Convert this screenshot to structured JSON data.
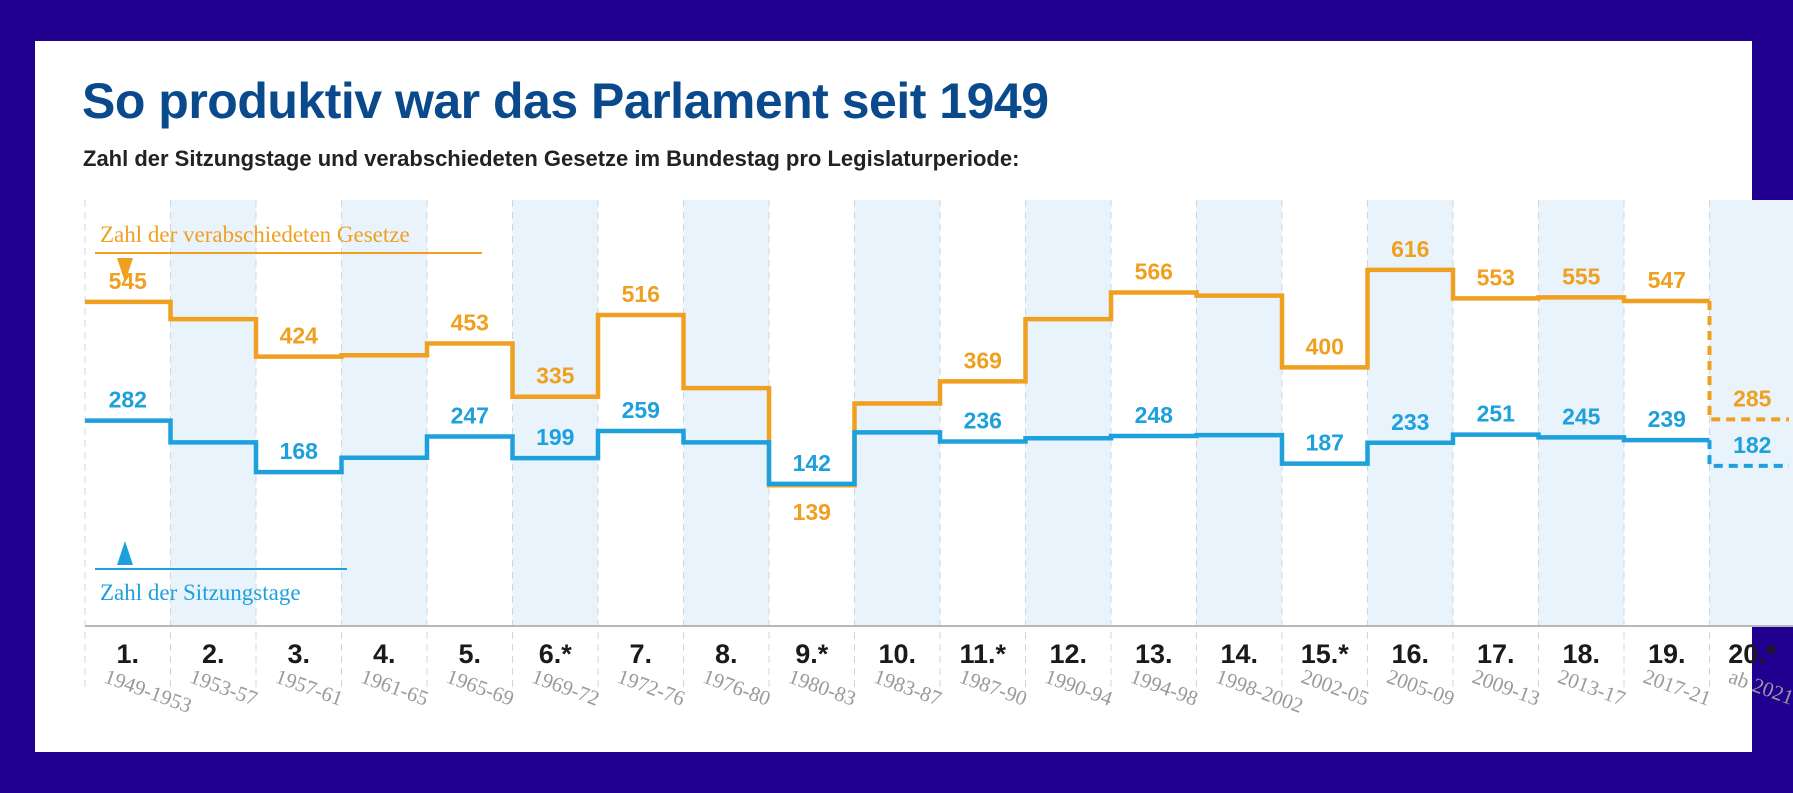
{
  "title": "So produktiv war das Parlament seit 1949",
  "subtitle": "Zahl der Sitzungstage und verabschiedeten Gesetze im Bundestag pro Legislaturperiode:",
  "colors": {
    "gesetze": "#f0a020",
    "sitzungstage": "#1ea0dc",
    "title": "#0a4a8c",
    "frame": "#22008f"
  },
  "chart_data": {
    "type": "line",
    "step": true,
    "categories": [
      "1.",
      "2.",
      "3.",
      "4.",
      "5.",
      "6.*",
      "7.",
      "8.",
      "9.*",
      "10.",
      "11.*",
      "12.",
      "13.",
      "14.",
      "15.*",
      "16.",
      "17.",
      "18.",
      "19.",
      "20.*"
    ],
    "periods": [
      "1949-1953",
      "1953-57",
      "1957-61",
      "1961-65",
      "1965-69",
      "1969-72",
      "1972-76",
      "1976-80",
      "1980-83",
      "1983-87",
      "1987-90",
      "1990-94",
      "1994-98",
      "1998-2002",
      "2002-05",
      "2005-09",
      "2009-13",
      "2013-17",
      "2017-21",
      "ab 2021"
    ],
    "series": [
      {
        "name": "Zahl der verabschiedeten Gesetze",
        "values": [
          545,
          507,
          424,
          427,
          453,
          335,
          516,
          354,
          139,
          320,
          369,
          507,
          566,
          559,
          400,
          616,
          553,
          555,
          547,
          285
        ],
        "labels": [
          "545",
          "",
          "424",
          "",
          "453",
          "335",
          "516",
          "",
          "139",
          "",
          "369",
          "",
          "566",
          "",
          "400",
          "616",
          "553",
          "555",
          "547",
          "285"
        ]
      },
      {
        "name": "Zahl der Sitzungstage",
        "values": [
          282,
          234,
          168,
          200,
          247,
          199,
          259,
          234,
          142,
          256,
          236,
          243,
          248,
          250,
          187,
          233,
          251,
          245,
          239,
          182
        ],
        "labels": [
          "282",
          "",
          "168",
          "",
          "247",
          "199",
          "259",
          "",
          "142",
          "",
          "236",
          "",
          "248",
          "",
          "187",
          "233",
          "251",
          "245",
          "239",
          "182"
        ]
      }
    ],
    "last_period_dashed": true
  }
}
